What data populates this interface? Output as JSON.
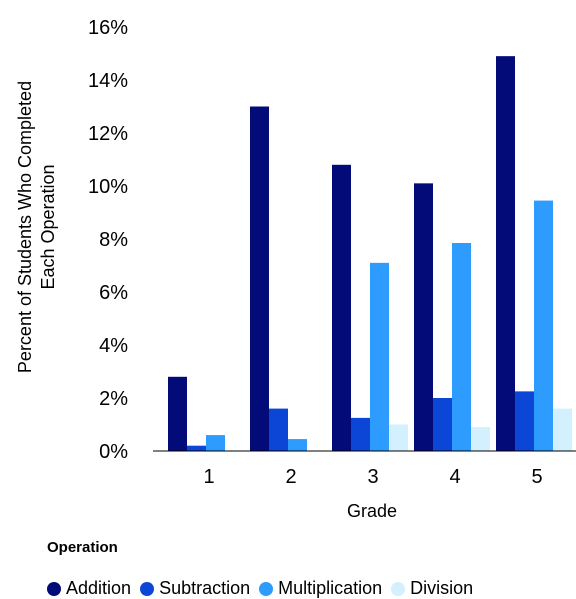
{
  "chart_data": {
    "type": "bar",
    "xlabel": "Grade",
    "ylabel_lines": [
      "Percent of Students Who Completed",
      "Each Operation"
    ],
    "categories": [
      "1",
      "2",
      "3",
      "4",
      "5"
    ],
    "yticks": [
      "0%",
      "2%",
      "4%",
      "6%",
      "8%",
      "10%",
      "12%",
      "14%",
      "16%"
    ],
    "ylim": [
      0,
      16
    ],
    "legend_title": "Operation",
    "legend_position": "bottom",
    "grid": false,
    "series": [
      {
        "name": "Addition",
        "color": "#030b78",
        "values": [
          2.8,
          13.0,
          10.8,
          10.1,
          14.9
        ]
      },
      {
        "name": "Subtraction",
        "color": "#0b46d6",
        "values": [
          0.2,
          1.6,
          1.25,
          2.0,
          2.25
        ]
      },
      {
        "name": "Multiplication",
        "color": "#2e9bff",
        "values": [
          0.6,
          0.45,
          7.1,
          7.85,
          9.45
        ]
      },
      {
        "name": "Division",
        "color": "#d2f0fd",
        "values": [
          0.0,
          0.0,
          1.0,
          0.9,
          1.6
        ]
      }
    ]
  }
}
